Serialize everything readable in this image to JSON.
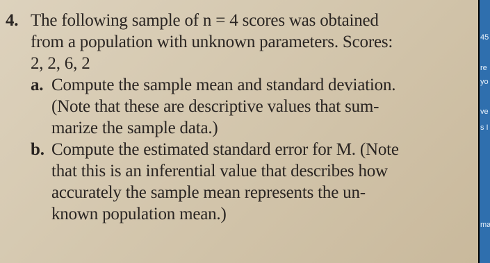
{
  "problem": {
    "number": "4.",
    "stem_lines": [
      "The following sample of n = 4 scores was obtained",
      "from a population with unknown parameters. Scores:",
      "2, 2, 6, 2"
    ],
    "parts": [
      {
        "label": "a.",
        "lines": [
          "Compute the sample mean and standard deviation.",
          "(Note that these are descriptive values that sum-",
          "marize the sample data.)"
        ]
      },
      {
        "label": "b.",
        "lines": [
          "Compute the estimated standard error for M. (Note",
          "that this is an inferential value that describes how",
          "accurately the sample mean represents the un-",
          "known population mean.)"
        ]
      }
    ]
  },
  "sidebar": {
    "fragments": [
      "45",
      "re",
      "yo",
      "ve",
      "s I",
      "ma"
    ]
  }
}
